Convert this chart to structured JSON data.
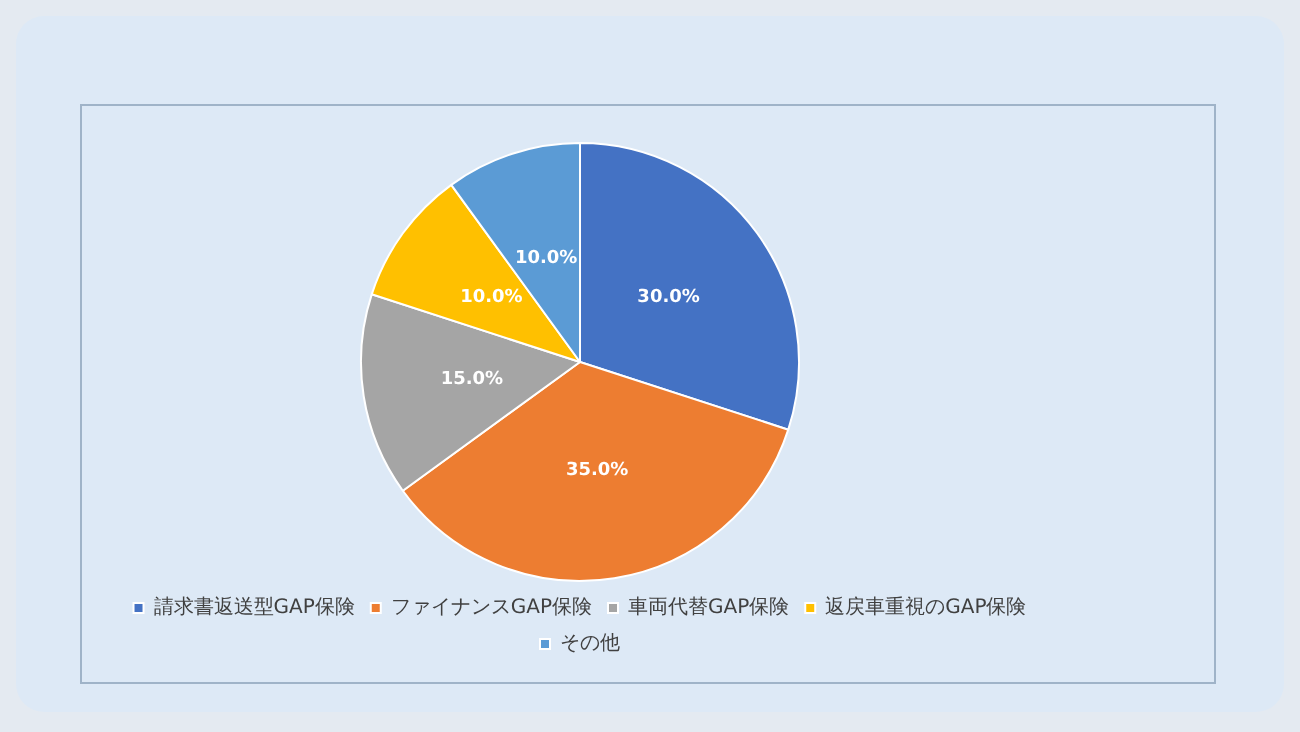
{
  "chart_data": {
    "type": "pie",
    "categories": [
      "請求書返送型GAP保険",
      "ファイナンスGAP保険",
      "車両代替GAP保険",
      "返戻車重視のGAP保険",
      "その他"
    ],
    "values": [
      30,
      35,
      15,
      10,
      10
    ],
    "colors": [
      "#4472c4",
      "#ed7d31",
      "#a5a5a5",
      "#ffc000",
      "#5b9bd5"
    ],
    "value_labels": [
      "30.0%",
      "35.0%",
      "15.0%",
      "10.0%",
      "10.0%"
    ],
    "legend": "bottom"
  }
}
